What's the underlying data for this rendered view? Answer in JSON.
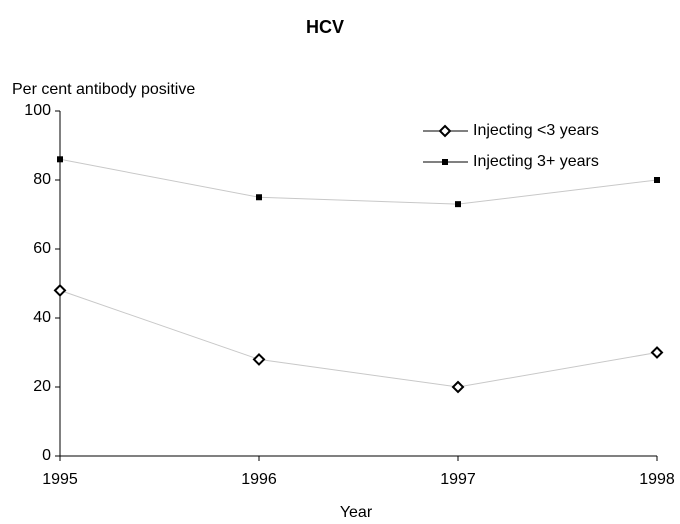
{
  "chart_data": {
    "type": "line",
    "title": "HCV",
    "y_label": "Per cent antibody positive",
    "x_label": "Year",
    "x": [
      1995,
      1996,
      1997,
      1998
    ],
    "series": [
      {
        "name": "Injecting <3 years",
        "color": "#000000",
        "marker": "diamond",
        "values": [
          48,
          28,
          20,
          30
        ]
      },
      {
        "name": "Injecting 3+ years",
        "color": "#000000",
        "marker": "square",
        "values": [
          86,
          75,
          73,
          80
        ]
      }
    ],
    "xlim": [
      1995,
      1998
    ],
    "xticks": [
      1995,
      1996,
      1997,
      1998
    ],
    "ylim": [
      0,
      100
    ],
    "yticks": [
      0,
      20,
      40,
      60,
      80,
      100
    ],
    "legend": "top-right"
  }
}
